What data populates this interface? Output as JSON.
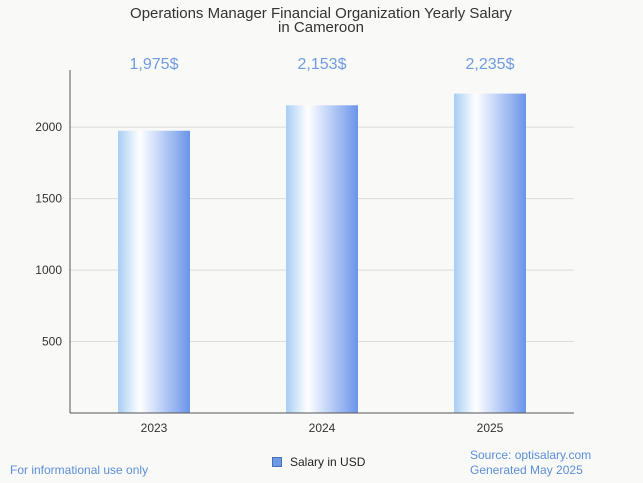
{
  "chart_data": {
    "type": "bar",
    "title_lines": [
      "Operations Manager Financial Organization Yearly Salary",
      "in Cameroon"
    ],
    "categories": [
      "2023",
      "2024",
      "2025"
    ],
    "values": [
      1975,
      2153,
      2235
    ],
    "value_labels": [
      "1,975$",
      "2,153$",
      "2,235$"
    ],
    "y_ticks": [
      500,
      1000,
      1500,
      2000
    ],
    "ylim": [
      0,
      2400
    ],
    "grid": true,
    "legend_position": "bottom",
    "series": [
      {
        "name": "Salary in USD",
        "values": [
          1975,
          2153,
          2235
        ]
      }
    ],
    "colors": {
      "bar_light": "#ffffff",
      "bar_mid": "#a9cdf4",
      "bar_dark": "#6a95ea",
      "label": "#6f9be4"
    }
  },
  "footer": {
    "left": "For informational use only",
    "source": "Source: optisalary.com",
    "generated": "Generated May 2025"
  }
}
